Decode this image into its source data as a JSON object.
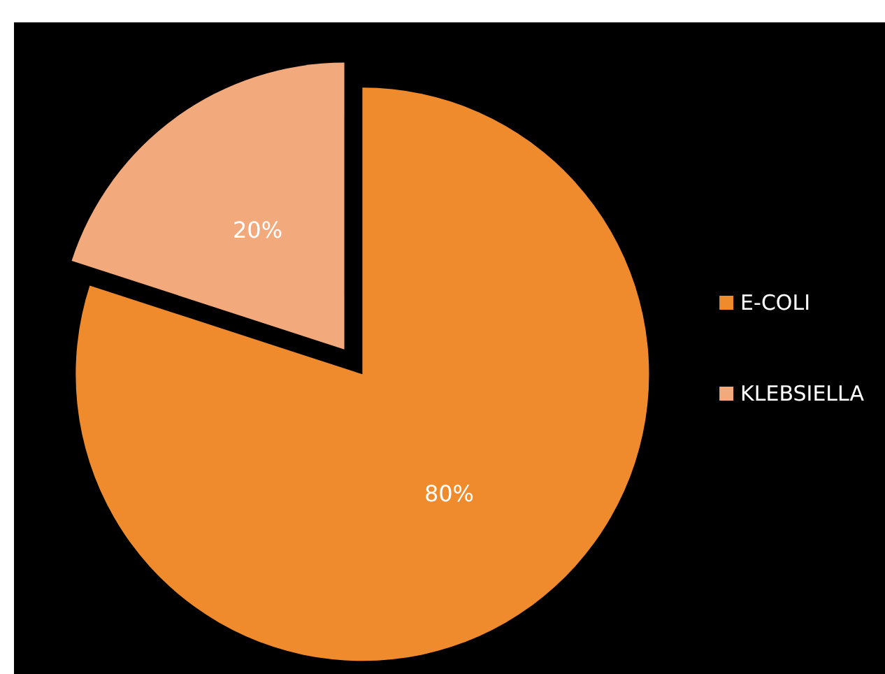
{
  "chart_data": {
    "type": "pie",
    "categories": [
      "E-COLI",
      "KLEBSIELLA"
    ],
    "values": [
      80,
      20
    ],
    "colors": [
      "#ef8b2c",
      "#f2aa7c"
    ],
    "value_labels": [
      "80%",
      "20%"
    ],
    "legend": "right"
  }
}
